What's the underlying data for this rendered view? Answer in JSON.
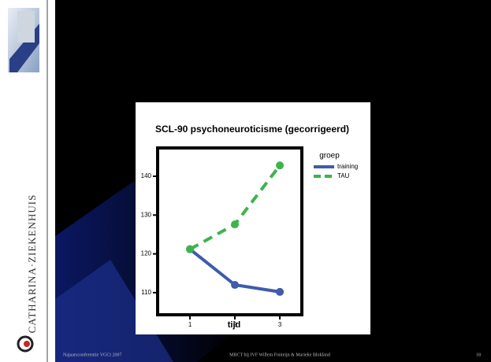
{
  "sidebar": {
    "brand": "CATHARINA·ZIEKENHUIS"
  },
  "chart_data": {
    "type": "line",
    "title": "SCL-90 psychoneuroticisme (gecorrigeerd)",
    "x_label": "tijd",
    "x": [
      1,
      2,
      3
    ],
    "series": [
      {
        "name": "training",
        "color": "#3f5bab",
        "dashed": false,
        "values": [
          121.2,
          112.0,
          110.2
        ]
      },
      {
        "name": "TAU",
        "color": "#3cb44b",
        "dashed": true,
        "values": [
          121.2,
          127.6,
          142.8
        ]
      }
    ],
    "xlim": [
      0.28,
      3.49
    ],
    "xticks": [
      1,
      2,
      3
    ],
    "ylim": [
      104.3,
      147.3
    ],
    "yticks": [
      110,
      120,
      130,
      140
    ],
    "legend_title": "groep",
    "legend": "right",
    "grid": false
  },
  "footer": {
    "left": "Najaarsconferentie VGCt 2007",
    "center": "MBCT bij IVF Willem Fonteijn & Marieke Blokland",
    "page": "18"
  }
}
